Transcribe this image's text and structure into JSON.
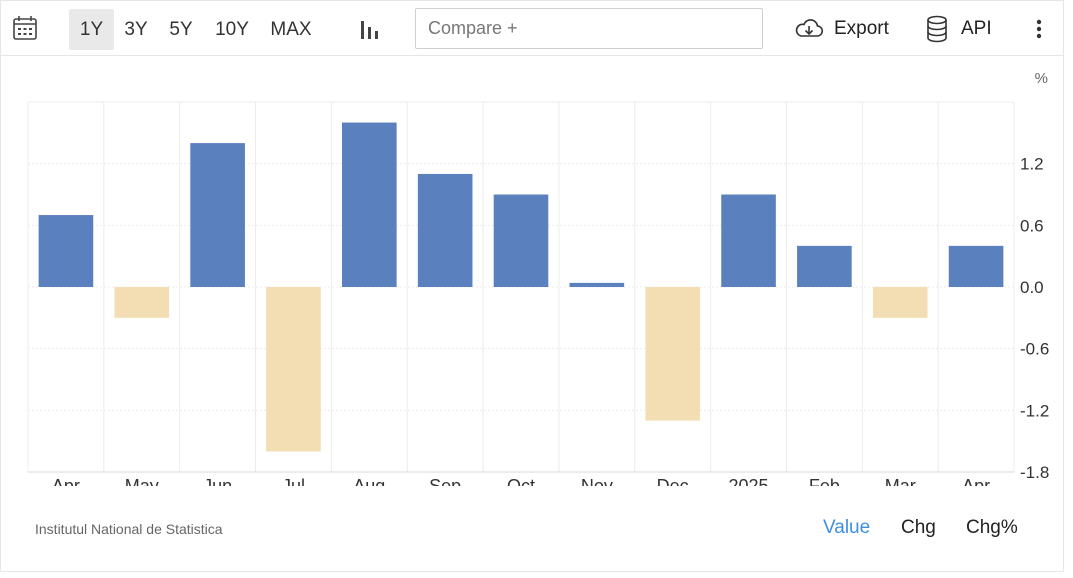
{
  "toolbar": {
    "ranges": [
      "1Y",
      "3Y",
      "5Y",
      "10Y",
      "MAX"
    ],
    "active_range": "1Y",
    "compare_placeholder": "Compare +",
    "export_label": "Export",
    "api_label": "API"
  },
  "footer": {
    "source": "Institutul National de Statistica",
    "modes": [
      "Value",
      "Chg",
      "Chg%"
    ],
    "active_mode": "Value"
  },
  "colors": {
    "positive": "#5b80be",
    "negative": "#f3deb4",
    "active_link": "#3d8fe0"
  },
  "chart_data": {
    "type": "bar",
    "unit_label": "%",
    "categories": [
      "Apr",
      "May",
      "Jun",
      "Jul",
      "Aug",
      "Sep",
      "Oct",
      "Nov",
      "Dec",
      "2025",
      "Feb",
      "Mar",
      "Apr"
    ],
    "values": [
      0.7,
      -0.3,
      1.4,
      -1.6,
      1.6,
      1.1,
      0.9,
      0.04,
      -1.3,
      0.9,
      0.4,
      -0.3,
      0.4
    ],
    "ylim": [
      -1.8,
      1.8
    ],
    "yticks": [
      "1.2",
      "0.6",
      "0.0",
      "-0.6",
      "-1.2",
      "-1.8"
    ],
    "grid": true,
    "y_axis_side": "right"
  }
}
